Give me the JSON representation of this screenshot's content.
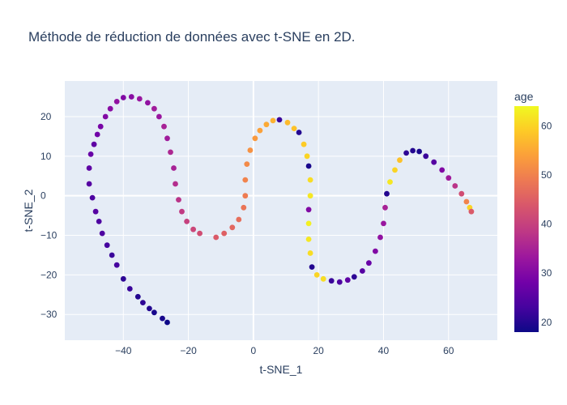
{
  "chart_data": {
    "type": "scatter",
    "title": "Méthode de réduction de données avec t-SNE en 2D.",
    "xlabel": "t-SNE_1",
    "ylabel": "t-SNE_2",
    "xlim": [
      -58,
      75
    ],
    "ylim": [
      -36.5,
      29
    ],
    "xticks": [
      -40,
      -20,
      0,
      20,
      40,
      60
    ],
    "yticks": [
      -30,
      -20,
      -10,
      0,
      10,
      20
    ],
    "xtick_labels": [
      "−40",
      "−20",
      "0",
      "20",
      "40",
      "60"
    ],
    "ytick_labels": [
      "−30",
      "−20",
      "−10",
      "0",
      "10",
      "20"
    ],
    "grid": true,
    "color": {
      "title": "age",
      "range": [
        18,
        64
      ],
      "ticks": [
        20,
        30,
        40,
        50,
        60
      ],
      "colorscale": "plasma"
    },
    "series": [
      {
        "points": [
          [
            -26.5,
            -32.0,
            18
          ],
          [
            -28.0,
            -31.0,
            19
          ],
          [
            -30.5,
            -29.5,
            19
          ],
          [
            -32.0,
            -28.5,
            20
          ],
          [
            -34.0,
            -27.0,
            21
          ],
          [
            -35.5,
            -25.5,
            20
          ],
          [
            -38.0,
            -23.5,
            22
          ],
          [
            -40.0,
            -21.0,
            21
          ],
          [
            -42.0,
            -17.5,
            23
          ],
          [
            -43.5,
            -15.0,
            22
          ],
          [
            -45.0,
            -12.5,
            23
          ],
          [
            -46.5,
            -9.5,
            24
          ],
          [
            -47.5,
            -6.5,
            24
          ],
          [
            -48.5,
            -4.0,
            25
          ],
          [
            -49.5,
            -0.5,
            24
          ],
          [
            -50.5,
            3.0,
            25
          ],
          [
            -50.5,
            7.0,
            26
          ],
          [
            -50.0,
            10.5,
            27
          ],
          [
            -49.0,
            13.0,
            26
          ],
          [
            -48.0,
            15.5,
            28
          ],
          [
            -47.0,
            17.5,
            29
          ],
          [
            -45.5,
            20.0,
            30
          ],
          [
            -44.0,
            22.0,
            31
          ],
          [
            -42.0,
            23.8,
            32
          ],
          [
            -40.0,
            24.8,
            30
          ],
          [
            -37.5,
            25.0,
            31
          ],
          [
            -35.0,
            24.5,
            33
          ],
          [
            -32.5,
            23.5,
            32
          ],
          [
            -30.5,
            22.0,
            34
          ],
          [
            -29.0,
            20.0,
            33
          ],
          [
            -27.5,
            17.5,
            35
          ],
          [
            -26.5,
            14.5,
            34
          ],
          [
            -25.5,
            11.0,
            36
          ],
          [
            -24.5,
            7.0,
            35
          ],
          [
            -24.0,
            3.0,
            37
          ],
          [
            -23.0,
            -1.0,
            38
          ],
          [
            -22.0,
            -4.0,
            39
          ],
          [
            -20.5,
            -6.5,
            40
          ],
          [
            -18.5,
            -8.5,
            41
          ],
          [
            -16.5,
            -9.5,
            42
          ],
          [
            -11.5,
            -10.5,
            44
          ],
          [
            -9.0,
            -9.5,
            45
          ],
          [
            -6.5,
            -8.0,
            46
          ],
          [
            -4.5,
            -6.0,
            47
          ],
          [
            -3.0,
            -3.0,
            48
          ],
          [
            -2.5,
            0.0,
            49
          ],
          [
            -2.5,
            4.0,
            50
          ],
          [
            -2.0,
            8.0,
            51
          ],
          [
            -1.0,
            11.5,
            52
          ],
          [
            0.5,
            14.5,
            53
          ],
          [
            2.0,
            16.5,
            54
          ],
          [
            4.0,
            18.0,
            55
          ],
          [
            6.0,
            19.0,
            56
          ],
          [
            8.0,
            19.2,
            22
          ],
          [
            10.5,
            18.5,
            57
          ],
          [
            12.5,
            17.0,
            58
          ],
          [
            14.0,
            16.0,
            20
          ],
          [
            15.5,
            13.0,
            59
          ],
          [
            16.5,
            10.0,
            60
          ],
          [
            17.0,
            7.5,
            19
          ],
          [
            17.5,
            4.0,
            61
          ],
          [
            17.5,
            0.0,
            62
          ],
          [
            17.0,
            -3.5,
            30
          ],
          [
            17.0,
            -7.0,
            63
          ],
          [
            17.0,
            -11.0,
            62
          ],
          [
            17.5,
            -14.5,
            61
          ],
          [
            18.0,
            -18.0,
            20
          ],
          [
            19.5,
            -20.0,
            60
          ],
          [
            21.5,
            -21.0,
            61
          ],
          [
            24.0,
            -21.5,
            22
          ],
          [
            26.5,
            -21.8,
            24
          ],
          [
            29.0,
            -21.3,
            26
          ],
          [
            31.0,
            -20.5,
            21
          ],
          [
            33.5,
            -19.0,
            25
          ],
          [
            35.5,
            -17.0,
            27
          ],
          [
            37.5,
            -14.0,
            30
          ],
          [
            39.0,
            -10.5,
            32
          ],
          [
            40.0,
            -7.0,
            33
          ],
          [
            40.5,
            -3.0,
            35
          ],
          [
            41.0,
            0.5,
            20
          ],
          [
            42.0,
            3.5,
            62
          ],
          [
            43.5,
            6.5,
            60
          ],
          [
            45.0,
            9.0,
            58
          ],
          [
            47.0,
            10.8,
            21
          ],
          [
            49.0,
            11.4,
            20
          ],
          [
            51.0,
            11.2,
            19
          ],
          [
            53.0,
            10.0,
            22
          ],
          [
            55.5,
            8.5,
            25
          ],
          [
            58.0,
            6.5,
            30
          ],
          [
            60.0,
            4.5,
            34
          ],
          [
            62.0,
            2.5,
            38
          ],
          [
            64.0,
            0.5,
            42
          ],
          [
            65.5,
            -1.5,
            50
          ],
          [
            66.5,
            -3.0,
            60
          ],
          [
            67.0,
            -4.0,
            44
          ]
        ]
      }
    ]
  }
}
